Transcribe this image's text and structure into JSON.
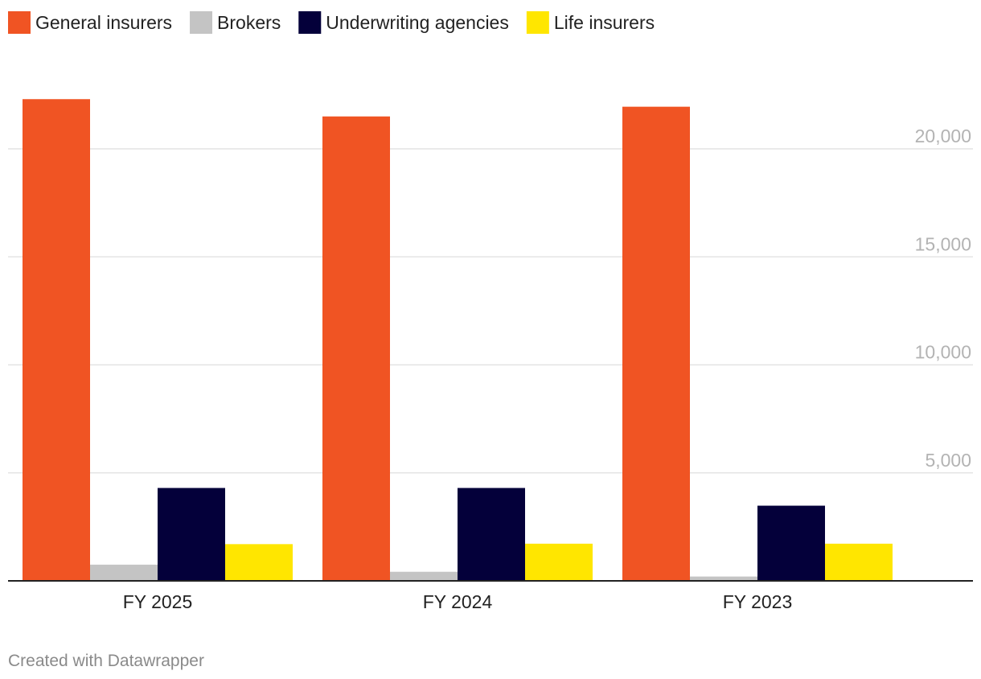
{
  "chart_data": {
    "type": "bar",
    "title": "",
    "xlabel": "",
    "ylabel": "",
    "categories": [
      "FY 2025",
      "FY 2024",
      "FY 2023"
    ],
    "series": [
      {
        "name": "General insurers",
        "color": "#f05423",
        "values": [
          22300,
          21500,
          21950
        ]
      },
      {
        "name": "Brokers",
        "color": "#c4c4c4",
        "values": [
          750,
          420,
          200
        ]
      },
      {
        "name": "Underwriting agencies",
        "color": "#04003a",
        "values": [
          4300,
          4300,
          3480
        ]
      },
      {
        "name": "Life insurers",
        "color": "#ffe600",
        "values": [
          1700,
          1720,
          1720
        ]
      }
    ],
    "yticks": [
      5000,
      10000,
      15000,
      20000
    ],
    "ytick_labels": [
      "5,000",
      "10,000",
      "15,000",
      "20,000"
    ],
    "ylim": [
      0,
      23000
    ],
    "grid": true,
    "legend_position": "top-left",
    "footer": "Created with Datawrapper"
  }
}
